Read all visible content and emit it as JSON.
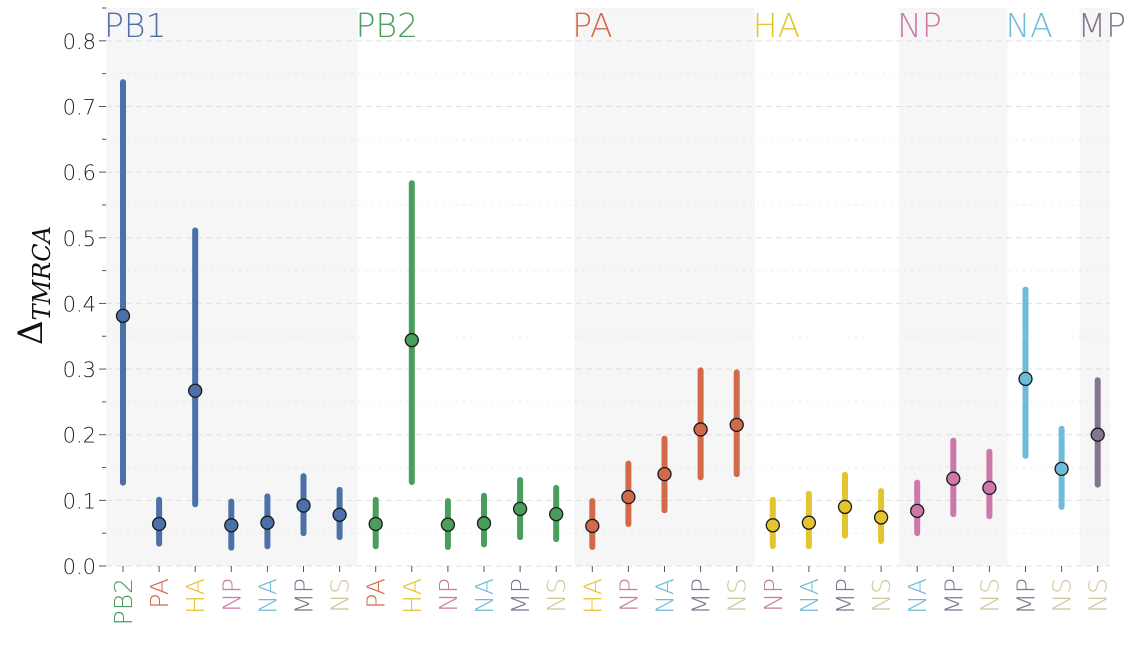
{
  "chart_data": {
    "type": "scatter",
    "ylabel": "Δ TMRCA",
    "ylim": [
      0,
      0.85
    ],
    "yticks": [
      "0.0",
      "0.1",
      "0.2",
      "0.3",
      "0.4",
      "0.5",
      "0.6",
      "0.7",
      "0.8"
    ],
    "colors": {
      "PB2": "#4a9e5c",
      "PA": "#d2694a",
      "HA": "#e3c52f",
      "NP": "#cc78a8",
      "NA": "#6fbcd8",
      "MP": "#857490",
      "NS": "#cfc49b",
      "PB1": "#4c70a8"
    },
    "background": {
      "shade": "#f6f6f6",
      "grid": "#dddddd"
    },
    "groups": [
      {
        "name": "PB1",
        "color": "#4c70a8",
        "shaded": true,
        "points": [
          {
            "category": "PB2",
            "y": 0.381,
            "low": 0.127,
            "high": 0.737
          },
          {
            "category": "PA",
            "y": 0.064,
            "low": 0.034,
            "high": 0.101
          },
          {
            "category": "HA",
            "y": 0.267,
            "low": 0.094,
            "high": 0.511
          },
          {
            "category": "NP",
            "y": 0.062,
            "low": 0.028,
            "high": 0.098
          },
          {
            "category": "NA",
            "y": 0.066,
            "low": 0.03,
            "high": 0.106
          },
          {
            "category": "MP",
            "y": 0.092,
            "low": 0.05,
            "high": 0.137
          },
          {
            "category": "NS",
            "y": 0.078,
            "low": 0.044,
            "high": 0.116
          }
        ]
      },
      {
        "name": "PB2",
        "color": "#4a9e5c",
        "shaded": false,
        "points": [
          {
            "category": "PA",
            "y": 0.064,
            "low": 0.03,
            "high": 0.101
          },
          {
            "category": "HA",
            "y": 0.344,
            "low": 0.128,
            "high": 0.583
          },
          {
            "category": "NP",
            "y": 0.063,
            "low": 0.029,
            "high": 0.099
          },
          {
            "category": "NA",
            "y": 0.065,
            "low": 0.033,
            "high": 0.107
          },
          {
            "category": "MP",
            "y": 0.087,
            "low": 0.044,
            "high": 0.131
          },
          {
            "category": "NS",
            "y": 0.079,
            "low": 0.041,
            "high": 0.119
          }
        ]
      },
      {
        "name": "PA",
        "color": "#d2694a",
        "shaded": true,
        "points": [
          {
            "category": "HA",
            "y": 0.061,
            "low": 0.029,
            "high": 0.099
          },
          {
            "category": "NP",
            "y": 0.105,
            "low": 0.064,
            "high": 0.156
          },
          {
            "category": "NA",
            "y": 0.14,
            "low": 0.085,
            "high": 0.194
          },
          {
            "category": "MP",
            "y": 0.208,
            "low": 0.135,
            "high": 0.298
          },
          {
            "category": "NS",
            "y": 0.215,
            "low": 0.14,
            "high": 0.295
          }
        ]
      },
      {
        "name": "HA",
        "color": "#e3c52f",
        "shaded": false,
        "points": [
          {
            "category": "NP",
            "y": 0.062,
            "low": 0.03,
            "high": 0.101
          },
          {
            "category": "NA",
            "y": 0.066,
            "low": 0.03,
            "high": 0.11
          },
          {
            "category": "MP",
            "y": 0.09,
            "low": 0.046,
            "high": 0.139
          },
          {
            "category": "NS",
            "y": 0.074,
            "low": 0.038,
            "high": 0.114
          }
        ]
      },
      {
        "name": "NP",
        "color": "#cc78a8",
        "shaded": true,
        "points": [
          {
            "category": "NA",
            "y": 0.084,
            "low": 0.05,
            "high": 0.127
          },
          {
            "category": "MP",
            "y": 0.133,
            "low": 0.079,
            "high": 0.191
          },
          {
            "category": "NS",
            "y": 0.119,
            "low": 0.076,
            "high": 0.174
          }
        ]
      },
      {
        "name": "NA",
        "color": "#6fbcd8",
        "shaded": false,
        "points": [
          {
            "category": "MP",
            "y": 0.285,
            "low": 0.168,
            "high": 0.421
          },
          {
            "category": "NS",
            "y": 0.148,
            "low": 0.09,
            "high": 0.209
          }
        ]
      },
      {
        "name": "MP",
        "color": "#857490",
        "shaded": true,
        "points": [
          {
            "category": "NS",
            "y": 0.2,
            "low": 0.124,
            "high": 0.283
          }
        ]
      }
    ]
  }
}
